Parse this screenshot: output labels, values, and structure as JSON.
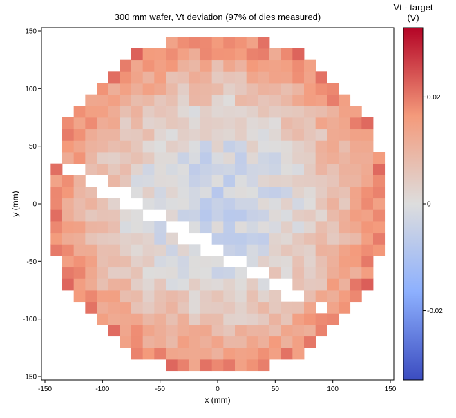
{
  "chart_data": {
    "type": "heatmap",
    "title": "300 mm wafer, Vt deviation (97% of dies measured)",
    "xlabel": "x (mm)",
    "ylabel": "y (mm)",
    "xlim": [
      -150,
      150
    ],
    "ylim": [
      -150,
      150
    ],
    "x_ticks": [
      -150,
      -100,
      -50,
      0,
      50,
      100,
      150
    ],
    "y_ticks": [
      -150,
      -100,
      -50,
      0,
      50,
      100,
      150
    ],
    "grid": false,
    "die_pitch_mm": 10,
    "wafer_diameter_mm": 300,
    "colorbar": {
      "title_lines": [
        "Vt - target",
        "(V)"
      ],
      "colormap": "coolwarm",
      "range": [
        -0.033,
        0.033
      ],
      "ticks": [
        -0.02,
        0,
        0.02
      ],
      "tick_labels": [
        "-0.02",
        "0",
        "0.02"
      ],
      "placement": "right"
    },
    "colors": {
      "low": "#3b4cc0",
      "mid": "#dddddd",
      "high": "#b40426"
    },
    "value_model": {
      "description": "Radial Vt deviation bowl: near 0 V at center, rising toward edge",
      "center_value": -0.004,
      "edge_value": 0.02,
      "hot_spots": [
        {
          "x": -145,
          "y": 0,
          "value": 0.033
        },
        {
          "x": -125,
          "y": 65,
          "value": 0.029
        },
        {
          "x": -95,
          "y": 100,
          "value": 0.027
        }
      ]
    },
    "unmeasured_band": {
      "description": "Diagonal band of unmeasured dies (scratch) from upper-left edge to lower-right",
      "from": [
        -140,
        38
      ],
      "to": [
        90,
        -92
      ]
    }
  }
}
